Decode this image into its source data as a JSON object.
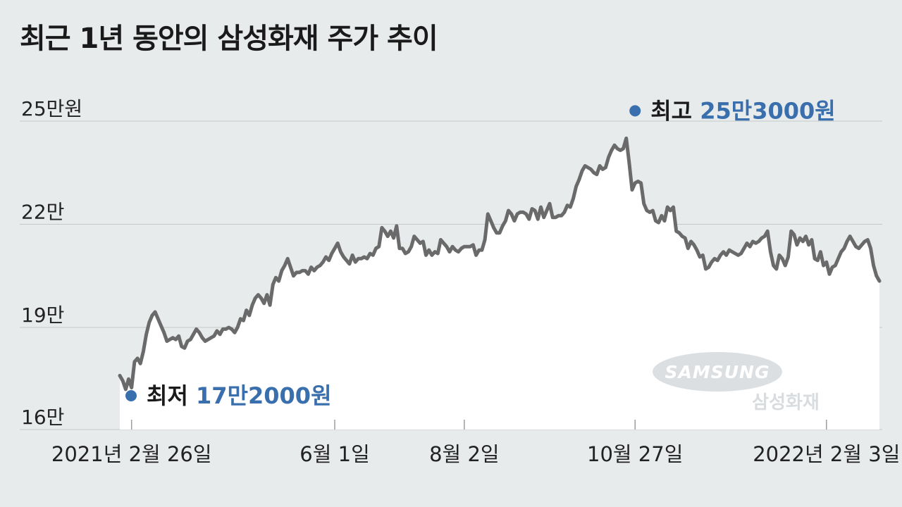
{
  "title": "최근 1년 동안의 삼성화재 주가 추이",
  "chart_data": {
    "type": "area",
    "title": "최근 1년 동안의 삼성화재 주가 추이",
    "ylim": [
      160000,
      255000
    ],
    "y_ticks": [
      {
        "value": 250000,
        "label": "25만원"
      },
      {
        "value": 220000,
        "label": "22만"
      },
      {
        "value": 190000,
        "label": "19만"
      },
      {
        "value": 160000,
        "label": "16만"
      }
    ],
    "x_ticks": [
      {
        "index": 4,
        "label": "2021년 2월 26일"
      },
      {
        "index": 73,
        "label": "6월 1일"
      },
      {
        "index": 117,
        "label": "8월 2일"
      },
      {
        "index": 175,
        "label": "10월 27일"
      },
      {
        "index": 240,
        "label": "2022년 2월 3일"
      }
    ],
    "grid": "horizontal",
    "line_color": "#6a6a6a",
    "fill_color": "#ffffff",
    "series": [
      {
        "values": [
          176000,
          174500,
          172000,
          175000,
          172500,
          180000,
          181000,
          179500,
          183000,
          188000,
          191500,
          193500,
          194500,
          192500,
          190500,
          188500,
          186000,
          186500,
          187000,
          186500,
          187500,
          184500,
          184000,
          186000,
          186500,
          188000,
          189500,
          188500,
          187000,
          186000,
          186500,
          187000,
          187500,
          189000,
          188000,
          189500,
          189500,
          190000,
          189500,
          188500,
          190000,
          192500,
          192000,
          195000,
          193500,
          196500,
          198500,
          199500,
          198500,
          197000,
          199500,
          196500,
          202500,
          204500,
          203500,
          206500,
          208000,
          210000,
          207500,
          205000,
          206000,
          206000,
          206500,
          206500,
          205500,
          207500,
          206500,
          207500,
          208000,
          209000,
          210500,
          209500,
          211500,
          213000,
          214500,
          212000,
          210500,
          209500,
          208500,
          211000,
          209000,
          210000,
          210000,
          210500,
          210000,
          211500,
          211000,
          213000,
          213500,
          219000,
          218000,
          216500,
          218000,
          216000,
          219500,
          213000,
          213000,
          211500,
          212000,
          213500,
          216500,
          215500,
          214500,
          215000,
          211000,
          212500,
          211000,
          212000,
          211500,
          215500,
          214500,
          213500,
          212000,
          213500,
          212500,
          212000,
          213000,
          213500,
          213500,
          213500,
          214000,
          211000,
          212500,
          212500,
          215500,
          223000,
          221000,
          219000,
          217500,
          217500,
          219500,
          221000,
          224000,
          223000,
          221000,
          223000,
          223500,
          223500,
          223000,
          221500,
          224500,
          224000,
          221500,
          225000,
          222000,
          224000,
          226000,
          222000,
          222000,
          222500,
          222500,
          223500,
          225500,
          225000,
          227500,
          231000,
          233000,
          235500,
          237000,
          236500,
          236000,
          235000,
          234500,
          237000,
          236000,
          236500,
          239500,
          241500,
          243000,
          242000,
          241500,
          242000,
          245000,
          238000,
          230000,
          232000,
          232500,
          232000,
          226000,
          224000,
          223500,
          224000,
          221000,
          220500,
          222500,
          221000,
          225000,
          224000,
          225000,
          218000,
          217500,
          216500,
          216000,
          213000,
          215000,
          214000,
          212500,
          210500,
          211000,
          207000,
          207500,
          209000,
          210000,
          209500,
          211000,
          212000,
          211000,
          212500,
          212000,
          211500,
          211000,
          211500,
          213000,
          214500,
          213500,
          215000,
          214500,
          215000,
          216000,
          216500,
          218000,
          212000,
          208000,
          207000,
          211000,
          210000,
          208000,
          210500,
          218000,
          217000,
          214000,
          216000,
          215000,
          216500,
          214000,
          215500,
          210000,
          209500,
          212000,
          208000,
          209000,
          205500,
          207500,
          208000,
          210000,
          212000,
          213000,
          215000,
          216500,
          215000,
          213500,
          213000,
          214000,
          215000,
          215500,
          213000,
          208000,
          205000,
          203500
        ],
        "x_labels": [
          "2021년 2월 26일",
          "6월 1일",
          "8월 2일",
          "10월 27일",
          "2022년 2월 3일"
        ]
      }
    ],
    "annotations": [
      {
        "kind": "min",
        "label": "최저",
        "value_text": "17만2000원",
        "value": 172000,
        "index": 4
      },
      {
        "kind": "max",
        "label": "최고",
        "value_text": "25만3000원",
        "value": 253000,
        "index": 175
      }
    ],
    "watermark": {
      "logo": "SAMSUNG",
      "name": "삼성화재"
    }
  }
}
